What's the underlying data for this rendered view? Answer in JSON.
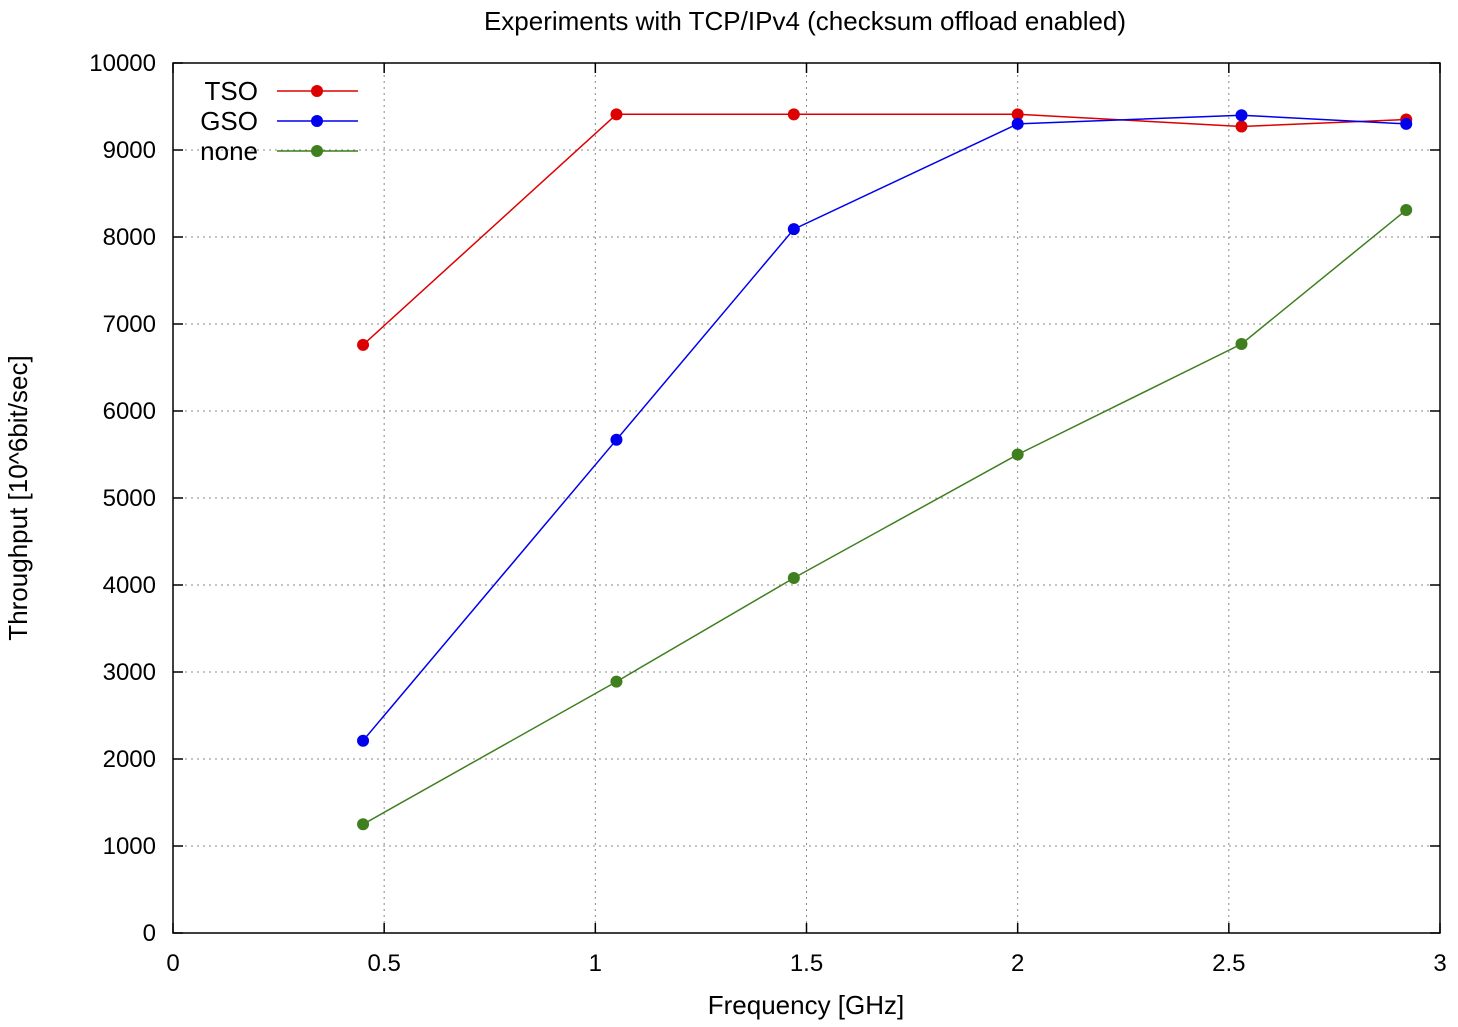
{
  "chart_data": {
    "type": "line",
    "title": "Experiments with TCP/IPv4 (checksum offload enabled)",
    "xlabel": "Frequency [GHz]",
    "ylabel": "Throughput [10^6bit/sec]",
    "xlim": [
      0,
      3
    ],
    "ylim": [
      0,
      10000
    ],
    "xticks": [
      0,
      0.5,
      1,
      1.5,
      2,
      2.5,
      3
    ],
    "xtick_labels": [
      "0",
      "0.5",
      "1",
      "1.5",
      "2",
      "2.5",
      "3"
    ],
    "yticks": [
      0,
      1000,
      2000,
      3000,
      4000,
      5000,
      6000,
      7000,
      8000,
      9000,
      10000
    ],
    "ytick_labels": [
      "0",
      "1000",
      "2000",
      "3000",
      "4000",
      "5000",
      "6000",
      "7000",
      "8000",
      "9000",
      "10000"
    ],
    "grid": true,
    "legend_position": "top-left",
    "x": [
      0.45,
      1.05,
      1.47,
      2.0,
      2.53,
      2.92
    ],
    "series": [
      {
        "name": "TSO",
        "color": "#dd0000",
        "values": [
          6760,
          9410,
          9410,
          9410,
          9270,
          9350
        ]
      },
      {
        "name": "GSO",
        "color": "#0000ee",
        "values": [
          2210,
          5670,
          8090,
          9300,
          9400,
          9300
        ]
      },
      {
        "name": "none",
        "color": "#3f7f1f",
        "values": [
          1250,
          2890,
          4080,
          5500,
          6770,
          8310
        ]
      }
    ]
  }
}
